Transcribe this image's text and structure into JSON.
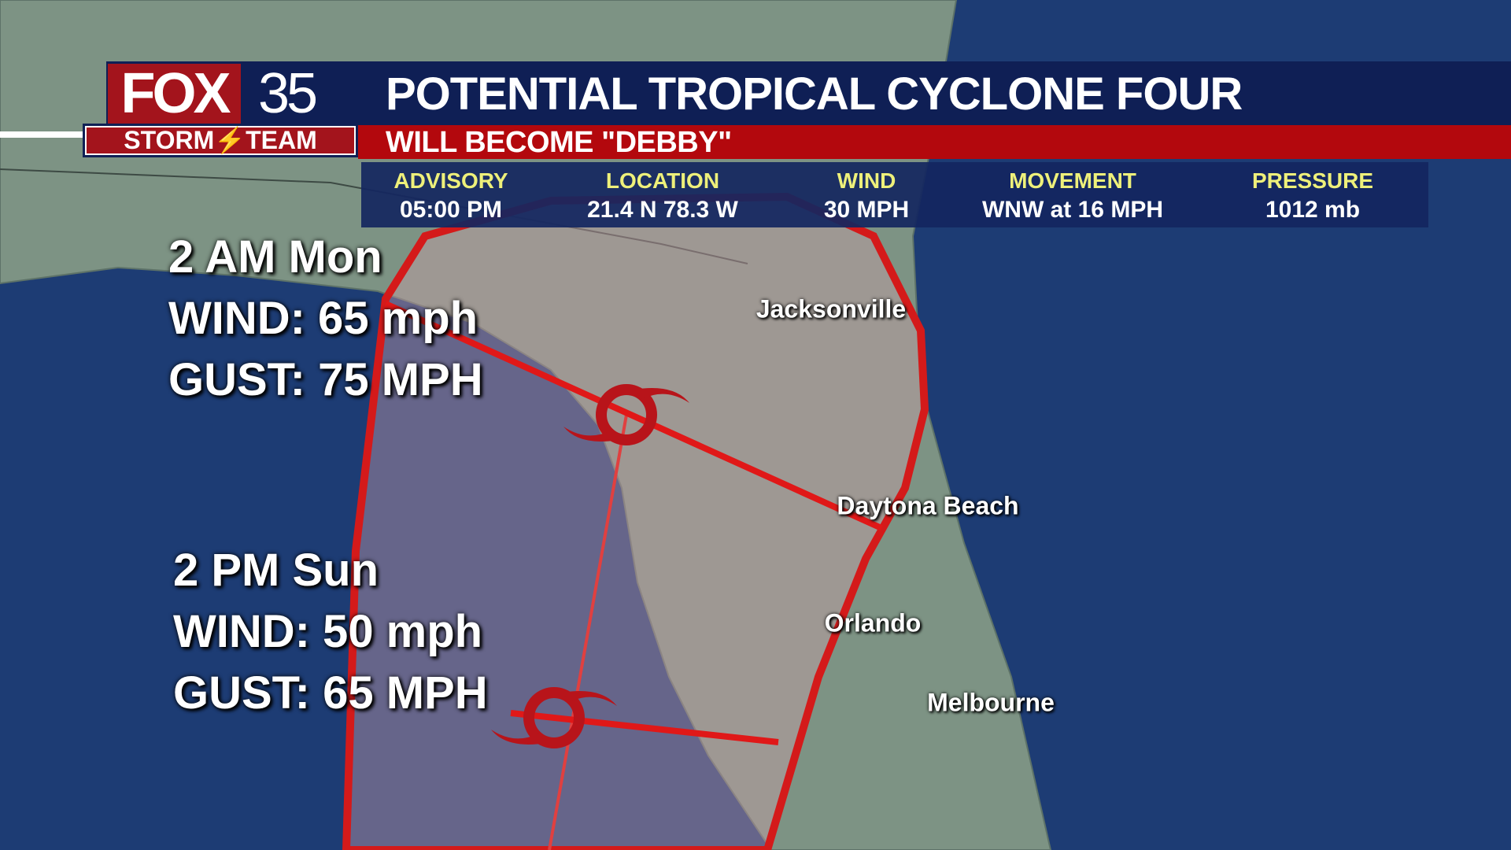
{
  "brand": {
    "logo_text": "FOX 35",
    "logo_sub": "STORM TEAM"
  },
  "header": {
    "title": "POTENTIAL TROPICAL CYCLONE FOUR",
    "subtitle": "WILL BECOME \"DEBBY\""
  },
  "advisory": [
    {
      "label": "ADVISORY",
      "value": "05:00 PM"
    },
    {
      "label": "LOCATION",
      "value": "21.4 N 78.3 W"
    },
    {
      "label": "WIND",
      "value": "30 MPH"
    },
    {
      "label": "MOVEMENT",
      "value": "WNW at 16 MPH"
    },
    {
      "label": "PRESSURE",
      "value": "1012 mb"
    }
  ],
  "forecast_points": [
    {
      "time": "2 AM Mon",
      "wind": "WIND: 65 mph",
      "gust": "GUST: 75 MPH"
    },
    {
      "time": "2 PM Sun",
      "wind": "WIND: 50 mph",
      "gust": "GUST: 65 MPH"
    }
  ],
  "cities": [
    "Jacksonville",
    "Daytona Beach",
    "Orlando",
    "Melbourne"
  ],
  "colors": {
    "navy": "#0f1f55",
    "red": "#b3080d",
    "label_yellow": "#eef07a",
    "cone_border": "#d41a1a",
    "ocean": "#1d3c74",
    "land": "#7d9384"
  }
}
